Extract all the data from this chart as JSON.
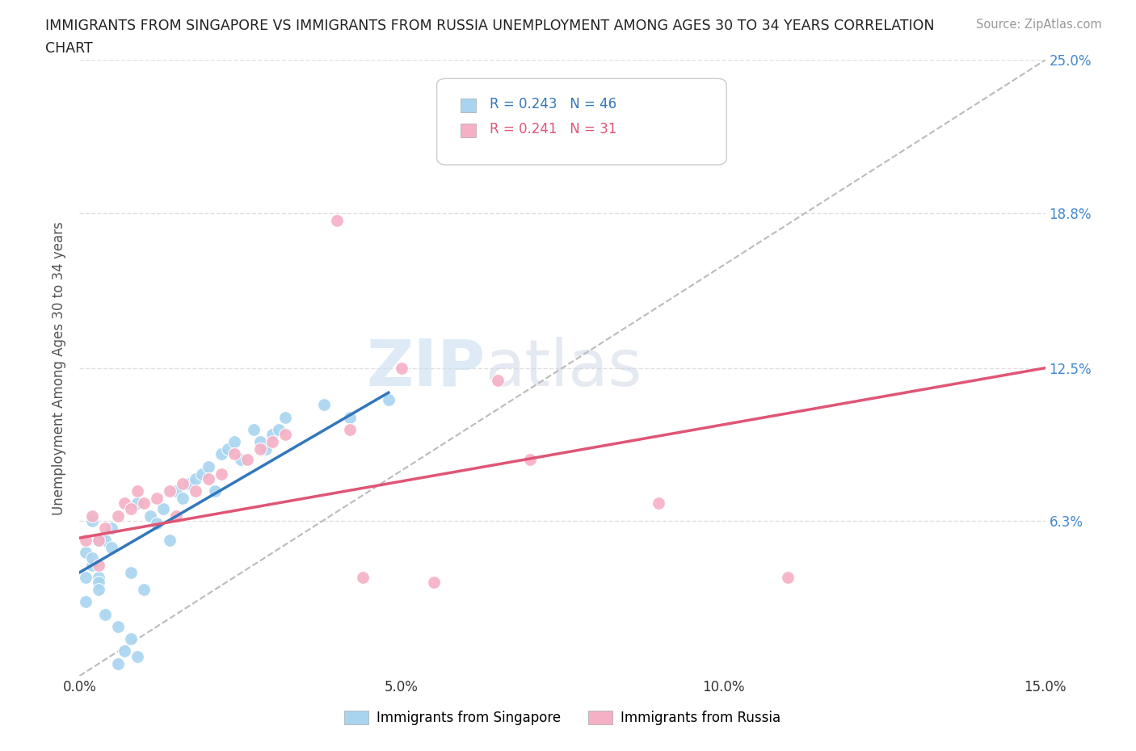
{
  "title_line1": "IMMIGRANTS FROM SINGAPORE VS IMMIGRANTS FROM RUSSIA UNEMPLOYMENT AMONG AGES 30 TO 34 YEARS CORRELATION",
  "title_line2": "CHART",
  "source": "Source: ZipAtlas.com",
  "ylabel_label": "Unemployment Among Ages 30 to 34 years",
  "xlim": [
    0.0,
    0.15
  ],
  "ylim": [
    0.0,
    0.25
  ],
  "xticks": [
    0.0,
    0.05,
    0.1,
    0.15
  ],
  "xticklabels": [
    "0.0%",
    "5.0%",
    "10.0%",
    "15.0%"
  ],
  "ytick_positions": [
    0.0,
    0.063,
    0.125,
    0.188,
    0.25
  ],
  "ytick_labels_right": [
    "",
    "6.3%",
    "12.5%",
    "18.8%",
    "25.0%"
  ],
  "background_color": "#ffffff",
  "grid_color": "#e0e0e0",
  "watermark_text1": "ZIP",
  "watermark_text2": "atlas",
  "legend_r1": "R = 0.243",
  "legend_n1": "N = 46",
  "legend_r2": "R = 0.241",
  "legend_n2": "N = 31",
  "singapore_color": "#a8d4f0",
  "russia_color": "#f5b0c5",
  "singapore_trend_color": "#3377bb",
  "russia_trend_color": "#e05575",
  "dashed_line_color": "#bbbbbb",
  "singapore_points_x": [
    0.002,
    0.001,
    0.003,
    0.002,
    0.001,
    0.004,
    0.005,
    0.003,
    0.002,
    0.001,
    0.003,
    0.005,
    0.003,
    0.004,
    0.006,
    0.008,
    0.007,
    0.009,
    0.006,
    0.008,
    0.01,
    0.011,
    0.009,
    0.012,
    0.013,
    0.014,
    0.015,
    0.016,
    0.017,
    0.018,
    0.019,
    0.02,
    0.021,
    0.022,
    0.023,
    0.024,
    0.025,
    0.027,
    0.028,
    0.029,
    0.03,
    0.031,
    0.032,
    0.038,
    0.042,
    0.048
  ],
  "singapore_points_y": [
    0.063,
    0.05,
    0.055,
    0.045,
    0.04,
    0.055,
    0.06,
    0.04,
    0.048,
    0.03,
    0.038,
    0.052,
    0.035,
    0.025,
    0.02,
    0.015,
    0.01,
    0.008,
    0.005,
    0.042,
    0.035,
    0.065,
    0.07,
    0.062,
    0.068,
    0.055,
    0.075,
    0.072,
    0.078,
    0.08,
    0.082,
    0.085,
    0.075,
    0.09,
    0.092,
    0.095,
    0.088,
    0.1,
    0.095,
    0.092,
    0.098,
    0.1,
    0.105,
    0.11,
    0.105,
    0.112
  ],
  "russia_points_x": [
    0.001,
    0.002,
    0.003,
    0.003,
    0.004,
    0.006,
    0.007,
    0.008,
    0.009,
    0.01,
    0.012,
    0.014,
    0.015,
    0.016,
    0.018,
    0.02,
    0.022,
    0.024,
    0.026,
    0.028,
    0.03,
    0.032,
    0.04,
    0.042,
    0.044,
    0.05,
    0.055,
    0.065,
    0.07,
    0.09,
    0.11
  ],
  "russia_points_y": [
    0.055,
    0.065,
    0.045,
    0.055,
    0.06,
    0.065,
    0.07,
    0.068,
    0.075,
    0.07,
    0.072,
    0.075,
    0.065,
    0.078,
    0.075,
    0.08,
    0.082,
    0.09,
    0.088,
    0.092,
    0.095,
    0.098,
    0.185,
    0.1,
    0.04,
    0.125,
    0.038,
    0.12,
    0.088,
    0.07,
    0.04
  ],
  "singapore_trend_x": [
    0.0,
    0.048
  ],
  "singapore_trend_y": [
    0.042,
    0.115
  ],
  "russia_trend_x": [
    0.0,
    0.15
  ],
  "russia_trend_y": [
    0.056,
    0.125
  ],
  "dashed_line_x": [
    0.0,
    0.15
  ],
  "dashed_line_y": [
    0.0,
    0.25
  ]
}
